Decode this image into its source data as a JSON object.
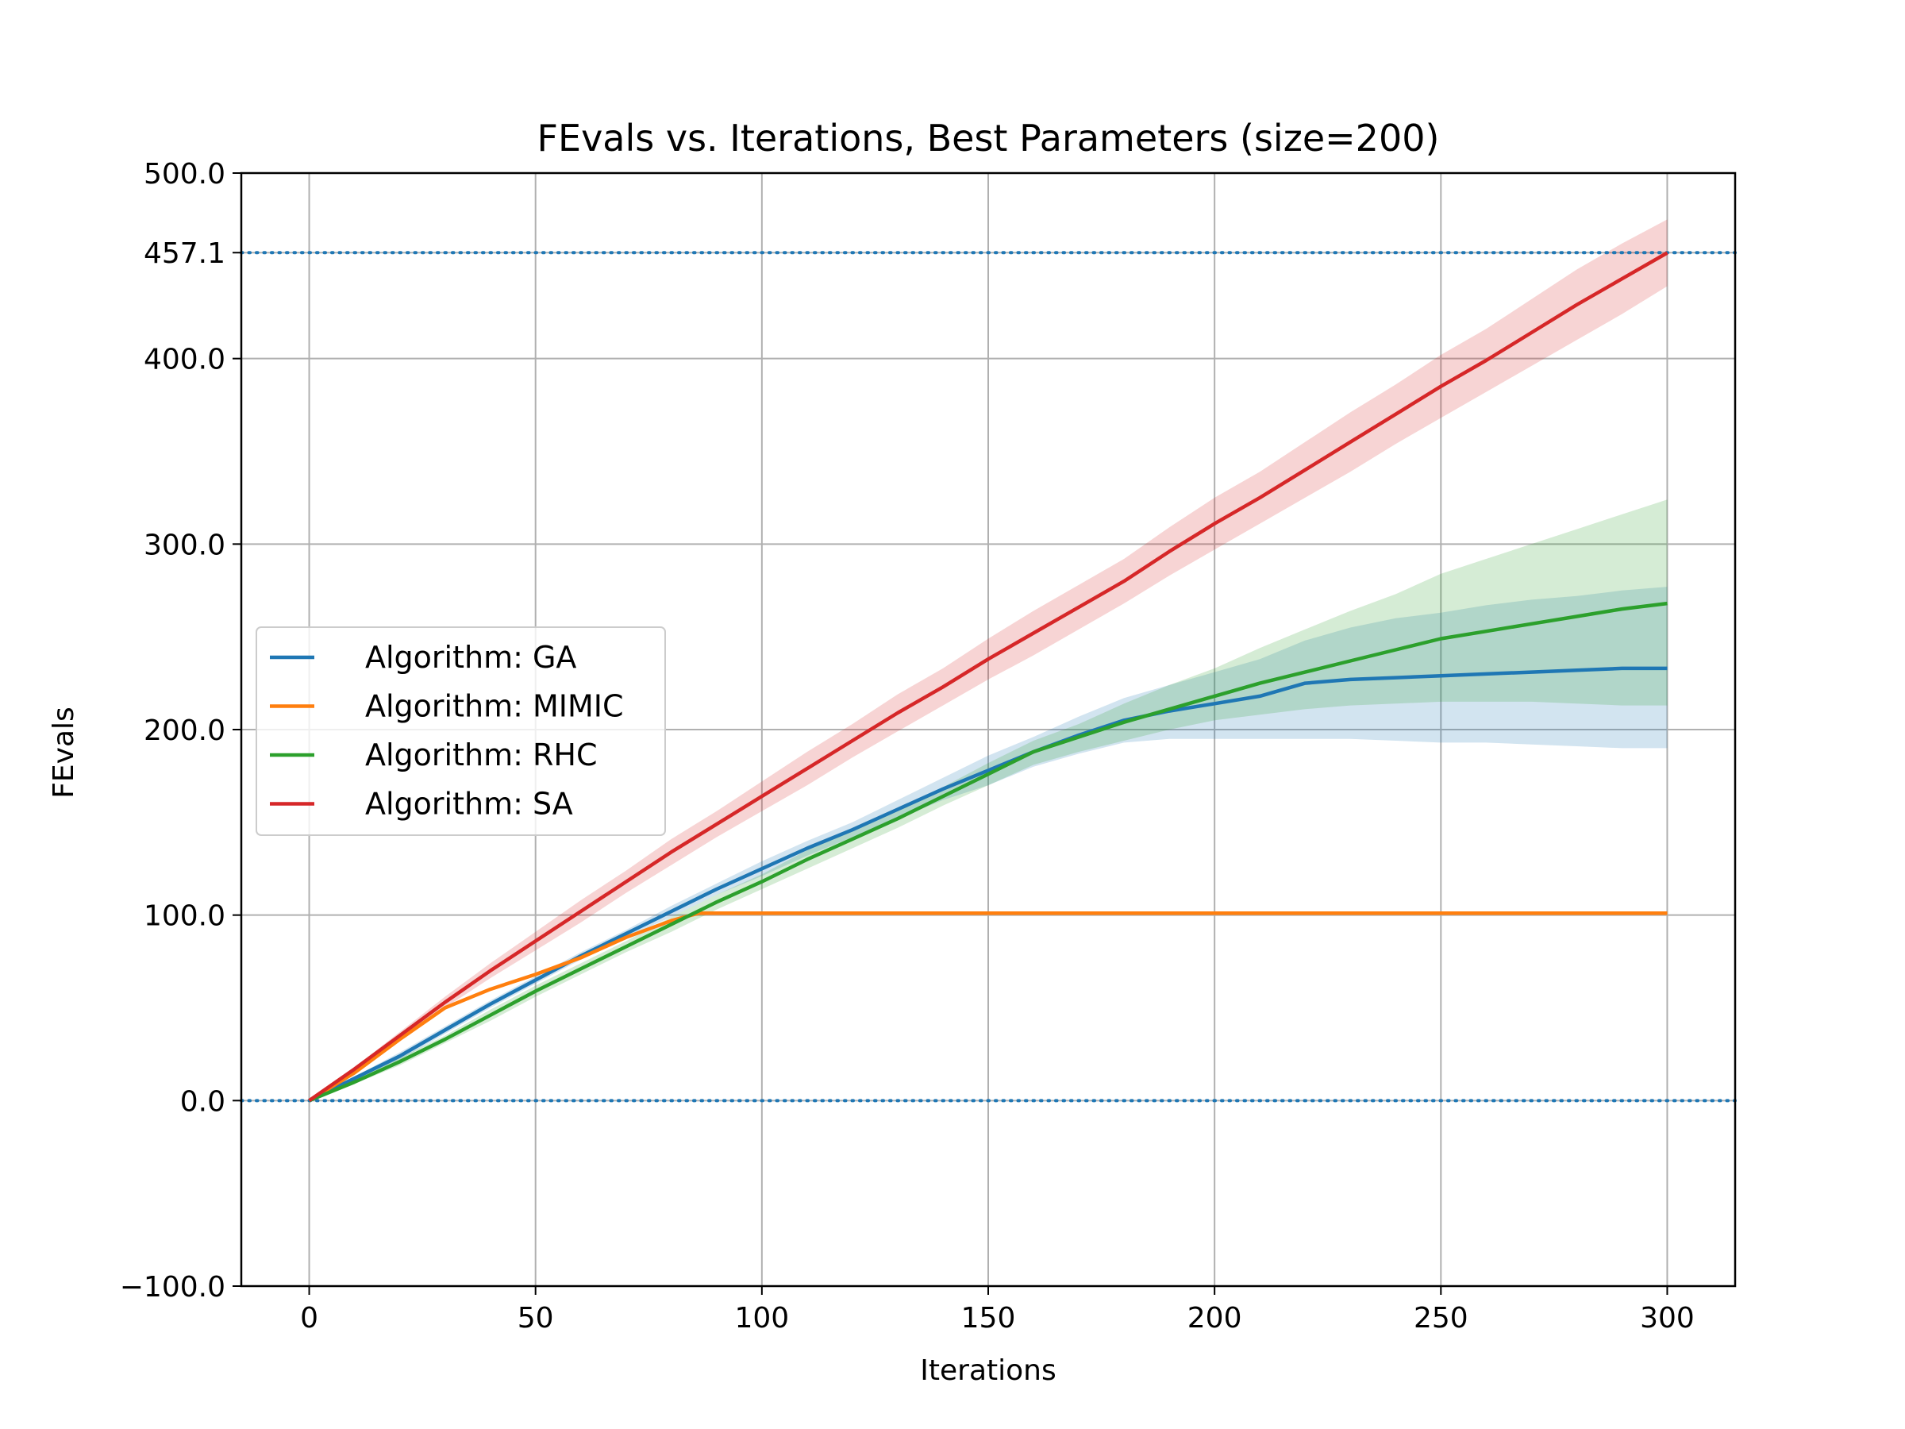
{
  "chart_data": {
    "type": "line",
    "title": "FEvals vs. Iterations, Best Parameters (size=200)",
    "xlabel": "Iterations",
    "ylabel": "FEvals",
    "xlim": [
      -15,
      315
    ],
    "ylim": [
      -100,
      500
    ],
    "xticks": [
      0,
      50,
      100,
      150,
      200,
      250,
      300
    ],
    "xtick_labels": [
      "0",
      "50",
      "100",
      "150",
      "200",
      "250",
      "300"
    ],
    "yticks": [
      -100,
      0,
      100,
      200,
      300,
      400,
      457.1,
      500
    ],
    "ytick_labels": [
      "−100.0",
      "0.0",
      "100.0",
      "200.0",
      "300.0",
      "400.0",
      "457.1",
      "500.0"
    ],
    "grid": true,
    "legend_position": "center-left",
    "reference_lines": [
      {
        "y": 457.1,
        "style": "dotted",
        "color": "#1f77b4"
      },
      {
        "y": 0,
        "style": "dotted",
        "color": "#1f77b4"
      }
    ],
    "series": [
      {
        "name": "Algorithm: GA",
        "color": "#1f77b4",
        "x": [
          0,
          10,
          20,
          30,
          40,
          50,
          60,
          70,
          80,
          90,
          100,
          110,
          120,
          130,
          140,
          150,
          160,
          170,
          180,
          190,
          200,
          210,
          220,
          230,
          240,
          250,
          260,
          270,
          280,
          290,
          300
        ],
        "y": [
          0,
          12,
          24,
          38,
          52,
          65,
          78,
          90,
          102,
          114,
          125,
          136,
          146,
          157,
          168,
          178,
          188,
          197,
          205,
          210,
          214,
          218,
          225,
          227,
          228,
          229,
          230,
          231,
          232,
          233,
          233
        ],
        "lower": [
          0,
          11,
          22,
          36,
          50,
          63,
          76,
          88,
          99,
          111,
          121,
          132,
          142,
          152,
          162,
          170,
          180,
          187,
          193,
          195,
          195,
          195,
          195,
          195,
          194,
          193,
          193,
          192,
          191,
          190,
          190
        ],
        "upper": [
          0,
          13,
          26,
          40,
          54,
          67,
          80,
          92,
          105,
          117,
          129,
          140,
          150,
          162,
          174,
          186,
          196,
          207,
          217,
          224,
          231,
          238,
          248,
          255,
          260,
          263,
          267,
          270,
          272,
          275,
          277
        ]
      },
      {
        "name": "Algorithm: MIMIC",
        "color": "#ff7f0e",
        "x": [
          0,
          10,
          20,
          30,
          40,
          50,
          60,
          70,
          80,
          86,
          100,
          150,
          200,
          250,
          300
        ],
        "y": [
          0,
          15,
          33,
          50,
          60,
          68,
          77,
          88,
          97,
          101,
          101,
          101,
          101,
          101,
          101
        ],
        "lower": [
          0,
          15,
          33,
          50,
          60,
          68,
          77,
          88,
          97,
          100,
          100,
          100,
          100,
          100,
          100
        ],
        "upper": [
          0,
          15,
          33,
          50,
          60,
          68,
          77,
          88,
          97,
          102,
          102,
          102,
          102,
          102,
          102
        ]
      },
      {
        "name": "Algorithm: RHC",
        "color": "#2ca02c",
        "x": [
          0,
          10,
          20,
          30,
          40,
          50,
          60,
          70,
          80,
          90,
          100,
          110,
          120,
          130,
          140,
          150,
          160,
          170,
          180,
          190,
          200,
          210,
          220,
          230,
          240,
          250,
          260,
          270,
          280,
          290,
          300
        ],
        "y": [
          0,
          10,
          21,
          33,
          46,
          59,
          71,
          83,
          95,
          107,
          118,
          130,
          141,
          152,
          164,
          176,
          188,
          196,
          204,
          211,
          218,
          225,
          231,
          237,
          243,
          249,
          253,
          257,
          261,
          265,
          268
        ],
        "lower": [
          0,
          9,
          19,
          31,
          43,
          56,
          68,
          80,
          91,
          103,
          114,
          125,
          136,
          147,
          159,
          170,
          181,
          188,
          194,
          200,
          205,
          208,
          211,
          213,
          214,
          215,
          215,
          215,
          214,
          213,
          213
        ],
        "upper": [
          0,
          11,
          23,
          35,
          49,
          62,
          74,
          86,
          99,
          111,
          122,
          135,
          146,
          157,
          169,
          182,
          194,
          203,
          214,
          224,
          233,
          244,
          254,
          264,
          273,
          284,
          292,
          300,
          308,
          316,
          324
        ]
      },
      {
        "name": "Algorithm: SA",
        "color": "#d62728",
        "x": [
          0,
          10,
          20,
          30,
          40,
          50,
          60,
          70,
          80,
          90,
          100,
          110,
          120,
          130,
          140,
          150,
          160,
          170,
          180,
          190,
          200,
          210,
          220,
          230,
          240,
          250,
          260,
          270,
          280,
          290,
          300
        ],
        "y": [
          0,
          17,
          35,
          53,
          70,
          86,
          102,
          118,
          134,
          149,
          164,
          179,
          194,
          209,
          223,
          238,
          252,
          266,
          280,
          296,
          311,
          325,
          340,
          355,
          370,
          385,
          399,
          414,
          429,
          443,
          457
        ],
        "lower": [
          0,
          16,
          33,
          50,
          66,
          81,
          96,
          112,
          127,
          142,
          156,
          170,
          185,
          199,
          213,
          227,
          240,
          254,
          268,
          283,
          297,
          311,
          325,
          339,
          354,
          368,
          382,
          396,
          410,
          424,
          439
        ],
        "upper": [
          0,
          18,
          37,
          56,
          74,
          91,
          108,
          124,
          141,
          156,
          172,
          188,
          203,
          219,
          233,
          249,
          264,
          278,
          292,
          309,
          325,
          339,
          355,
          371,
          386,
          402,
          416,
          432,
          448,
          462,
          475
        ]
      }
    ]
  }
}
